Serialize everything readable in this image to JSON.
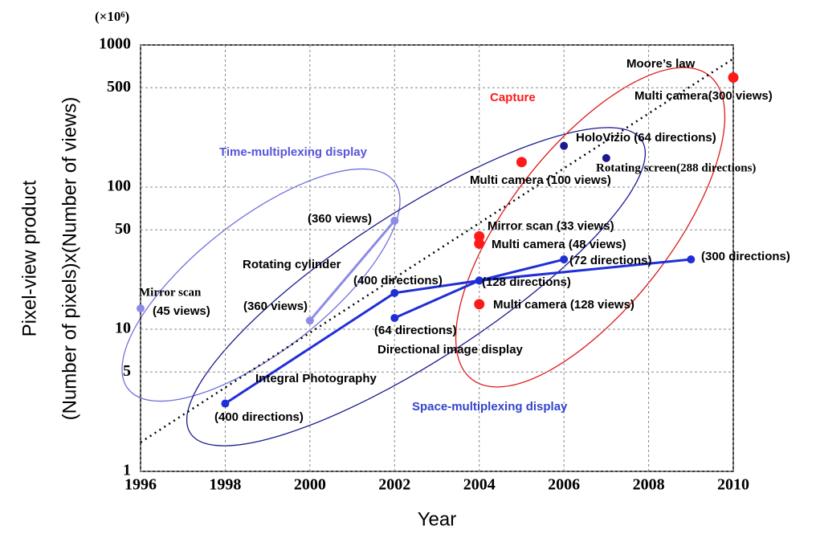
{
  "chart_data": {
    "type": "scatter",
    "unit_label": "(×10⁶)",
    "xlabel": "Year",
    "ylabel": [
      "Pixel-view product",
      "(Number of pixels)x(Number of views)"
    ],
    "xlim": [
      1996,
      2010
    ],
    "xticks": [
      1996,
      1998,
      2000,
      2002,
      2004,
      2006,
      2008,
      2010
    ],
    "ylim": [
      1,
      1000
    ],
    "yticks": [
      1,
      5,
      10,
      50,
      100,
      500,
      1000
    ],
    "log_scale": true,
    "grid": true,
    "series": [
      {
        "color": "#8c8ce6",
        "style": "markers",
        "x": [
          1996
        ],
        "values": [
          14
        ]
      },
      {
        "color": "#8c8ce6",
        "style": "line",
        "x": [
          2000,
          2002
        ],
        "values": [
          11.5,
          58
        ]
      },
      {
        "color": "#1f2fd6",
        "style": "line",
        "x": [
          1998,
          2002,
          2004,
          2006
        ],
        "values": [
          3,
          18,
          22,
          31
        ]
      },
      {
        "color": "#1f2fd6",
        "style": "line",
        "x": [
          2002,
          2004,
          2009
        ],
        "values": [
          12,
          22,
          31
        ]
      },
      {
        "color": "#1a1a8c",
        "style": "markers",
        "x": [
          2006,
          2007
        ],
        "values": [
          195,
          160
        ]
      },
      {
        "color": "#ff1a1a",
        "style": "big-markers",
        "x": [
          2004,
          2004,
          2004,
          2005,
          2010
        ],
        "values": [
          45,
          40,
          15,
          150,
          590
        ]
      },
      {
        "color": "#000000",
        "style": "dotted",
        "x": [
          1996,
          2010
        ],
        "values": [
          1.6,
          800
        ]
      }
    ],
    "annotations": [
      {
        "text": "Moore’s law",
        "color": "#000000"
      },
      {
        "text": "Multi camera(300 views)",
        "color": "#000000"
      },
      {
        "text": "Capture",
        "color": "#ff1a1a"
      },
      {
        "text": "HoloVizio (64 directions)",
        "color": "#000000"
      },
      {
        "text": "Rotating screen(288 directions)",
        "color": "#000000"
      },
      {
        "text": "Time-multiplexing display",
        "color": "#5555dd"
      },
      {
        "text": "Multi camera (100 views)",
        "color": "#000000"
      },
      {
        "text": "(360 views)",
        "color": "#000000"
      },
      {
        "text": "Mirror scan (33 views)",
        "color": "#000000"
      },
      {
        "text": "Multi camera (48 views)",
        "color": "#000000"
      },
      {
        "text": "Rotating cylinder",
        "color": "#000000"
      },
      {
        "text": "(72 directions)",
        "color": "#000000"
      },
      {
        "text": "(300 directions)",
        "color": "#000000"
      },
      {
        "text": "(400 directions)",
        "color": "#000000"
      },
      {
        "text": "(128 directions)",
        "color": "#000000"
      },
      {
        "text": "Mirror scan",
        "color": "#000000"
      },
      {
        "text": "(45 views)",
        "color": "#000000"
      },
      {
        "text": "(360 views)",
        "color": "#000000"
      },
      {
        "text": "Multi camera (128 views)",
        "color": "#000000"
      },
      {
        "text": "(64 directions)",
        "color": "#000000"
      },
      {
        "text": "Directional image display",
        "color": "#000000"
      },
      {
        "text": "Integral Photography",
        "color": "#000000"
      },
      {
        "text": "Space-multiplexing display",
        "color": "#3344cc"
      },
      {
        "text": "(400 directions)",
        "color": "#000000"
      }
    ]
  }
}
